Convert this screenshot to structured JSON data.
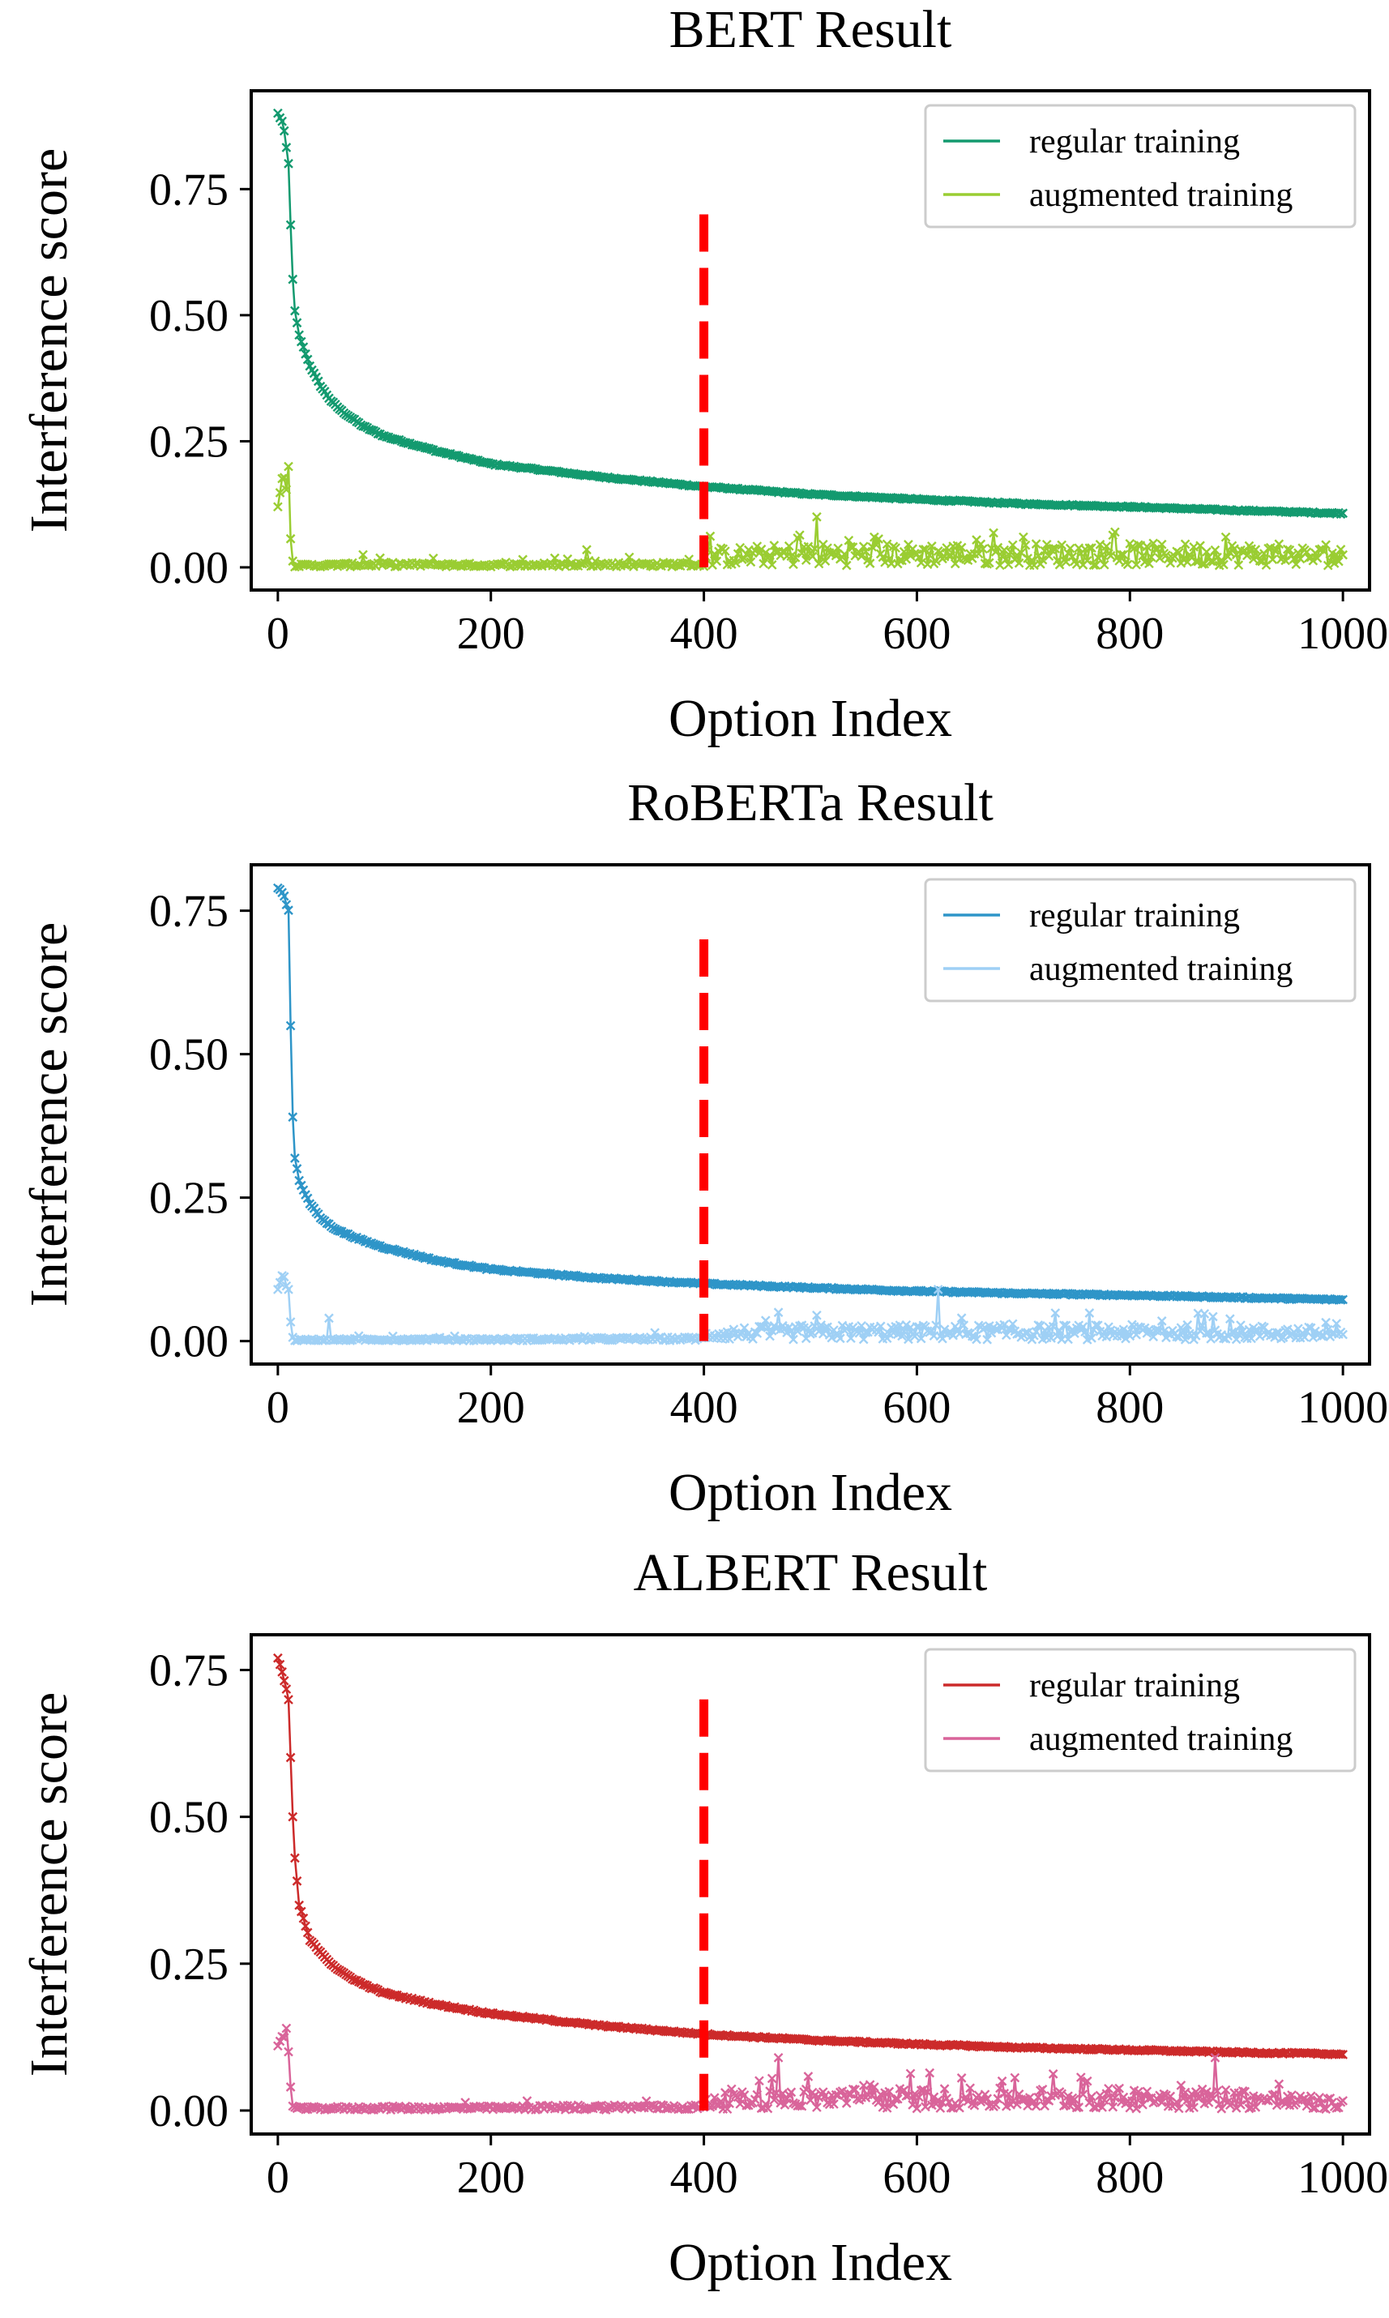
{
  "chart_data": [
    {
      "type": "line",
      "title": "BERT Result",
      "xlabel": "Option Index",
      "ylabel": "Interference score",
      "xlim": [
        -25,
        1025
      ],
      "ylim": [
        -0.045,
        0.945
      ],
      "xticks": [
        0,
        200,
        400,
        600,
        800,
        1000
      ],
      "xtick_labels": [
        "0",
        "200",
        "400",
        "600",
        "800",
        "1000"
      ],
      "yticks": [
        0,
        0.25,
        0.5,
        0.75
      ],
      "ytick_labels": [
        "0.00",
        "0.25",
        "0.50",
        "0.75"
      ],
      "legend_position": "top-right",
      "vline": {
        "x": 400,
        "y_from": 0.0,
        "y_to": 0.7,
        "color": "#ff0000",
        "style": "dashed"
      },
      "series": [
        {
          "name": "regular training",
          "color": "#139a6f",
          "marker": "x",
          "x": [
            0,
            5,
            10,
            13,
            15,
            20,
            30,
            40,
            50,
            60,
            80,
            100,
            150,
            200,
            300,
            400,
            500,
            600,
            700,
            800,
            900,
            1000
          ],
          "values": [
            0.9,
            0.88,
            0.8,
            0.62,
            0.52,
            0.46,
            0.4,
            0.36,
            0.33,
            0.31,
            0.28,
            0.26,
            0.23,
            0.205,
            0.18,
            0.16,
            0.145,
            0.135,
            0.126,
            0.12,
            0.113,
            0.107
          ]
        },
        {
          "name": "augmented training",
          "color": "#9acd32",
          "marker": "x",
          "x": [
            0,
            5,
            10,
            13,
            15,
            100,
            200,
            300,
            400,
            401,
            500,
            600,
            700,
            800,
            900,
            1000
          ],
          "values": [
            0.12,
            0.19,
            0.13,
            0.02,
            0.005,
            0.008,
            0.006,
            0.008,
            0.008,
            0.02,
            0.025,
            0.025,
            0.025,
            0.025,
            0.025,
            0.02
          ],
          "spikes": [
            [
              10,
              0.2
            ],
            [
              80,
              0.025
            ],
            [
              145,
              0.018
            ],
            [
              290,
              0.035
            ],
            [
              330,
              0.02
            ],
            [
              505,
              0.1
            ],
            [
              560,
              0.06
            ],
            [
              700,
              0.06
            ],
            [
              785,
              0.07
            ],
            [
              890,
              0.06
            ]
          ]
        }
      ]
    },
    {
      "type": "line",
      "title": "RoBERTa Result",
      "xlabel": "Option Index",
      "ylabel": "Interference score",
      "xlim": [
        -25,
        1025
      ],
      "ylim": [
        -0.04,
        0.83
      ],
      "xticks": [
        0,
        200,
        400,
        600,
        800,
        1000
      ],
      "xtick_labels": [
        "0",
        "200",
        "400",
        "600",
        "800",
        "1000"
      ],
      "yticks": [
        0,
        0.25,
        0.5,
        0.75
      ],
      "ytick_labels": [
        "0.00",
        "0.25",
        "0.50",
        "0.75"
      ],
      "legend_position": "top-right",
      "vline": {
        "x": 400,
        "y_from": 0.0,
        "y_to": 0.7,
        "color": "#ff0000",
        "style": "dashed"
      },
      "series": [
        {
          "name": "regular training",
          "color": "#2e95c8",
          "marker": "x",
          "x": [
            0,
            5,
            10,
            13,
            15,
            20,
            30,
            40,
            50,
            60,
            80,
            100,
            150,
            200,
            300,
            400,
            500,
            600,
            700,
            800,
            900,
            1000
          ],
          "values": [
            0.79,
            0.78,
            0.75,
            0.45,
            0.33,
            0.28,
            0.24,
            0.215,
            0.2,
            0.19,
            0.175,
            0.163,
            0.14,
            0.125,
            0.11,
            0.1,
            0.093,
            0.087,
            0.083,
            0.08,
            0.076,
            0.072
          ]
        },
        {
          "name": "augmented training",
          "color": "#9fd0f5",
          "marker": "x",
          "x": [
            0,
            5,
            10,
            13,
            15,
            100,
            200,
            300,
            400,
            401,
            500,
            600,
            700,
            800,
            900,
            1000
          ],
          "values": [
            0.09,
            0.12,
            0.08,
            0.01,
            0.003,
            0.004,
            0.004,
            0.005,
            0.006,
            0.012,
            0.015,
            0.015,
            0.015,
            0.015,
            0.015,
            0.012
          ],
          "spikes": [
            [
              10,
              0.09
            ],
            [
              48,
              0.04
            ],
            [
              470,
              0.05
            ],
            [
              505,
              0.045
            ],
            [
              620,
              0.09
            ],
            [
              690,
              0.03
            ],
            [
              830,
              0.035
            ]
          ]
        }
      ]
    },
    {
      "type": "line",
      "title": "ALBERT Result",
      "xlabel": "Option Index",
      "ylabel": "Interference score",
      "xlim": [
        -25,
        1025
      ],
      "ylim": [
        -0.04,
        0.81
      ],
      "xticks": [
        0,
        200,
        400,
        600,
        800,
        1000
      ],
      "xtick_labels": [
        "0",
        "200",
        "400",
        "600",
        "800",
        "1000"
      ],
      "yticks": [
        0,
        0.25,
        0.5,
        0.75
      ],
      "ytick_labels": [
        "0.00",
        "0.25",
        "0.50",
        "0.75"
      ],
      "legend_position": "top-right",
      "vline": {
        "x": 400,
        "y_from": 0.0,
        "y_to": 0.7,
        "color": "#ff0000",
        "style": "dashed"
      },
      "series": [
        {
          "name": "regular training",
          "color": "#cc2a2a",
          "marker": "x",
          "x": [
            0,
            5,
            10,
            13,
            15,
            20,
            25,
            30,
            40,
            50,
            60,
            80,
            100,
            150,
            200,
            300,
            400,
            500,
            600,
            700,
            800,
            900,
            1000
          ],
          "values": [
            0.77,
            0.74,
            0.7,
            0.55,
            0.45,
            0.35,
            0.32,
            0.29,
            0.27,
            0.25,
            0.235,
            0.215,
            0.2,
            0.18,
            0.165,
            0.145,
            0.13,
            0.12,
            0.113,
            0.107,
            0.103,
            0.099,
            0.096
          ]
        },
        {
          "name": "augmented training",
          "color": "#d9649a",
          "marker": "x",
          "x": [
            0,
            5,
            10,
            13,
            15,
            100,
            200,
            300,
            400,
            401,
            500,
            600,
            700,
            800,
            900,
            1000
          ],
          "values": [
            0.11,
            0.13,
            0.1,
            0.01,
            0.005,
            0.006,
            0.006,
            0.008,
            0.008,
            0.015,
            0.02,
            0.02,
            0.02,
            0.02,
            0.02,
            0.01
          ],
          "spikes": [
            [
              8,
              0.14
            ],
            [
              470,
              0.09
            ],
            [
              560,
              0.04
            ],
            [
              680,
              0.05
            ],
            [
              760,
              0.05
            ],
            [
              880,
              0.09
            ],
            [
              940,
              0.045
            ]
          ]
        }
      ]
    }
  ]
}
